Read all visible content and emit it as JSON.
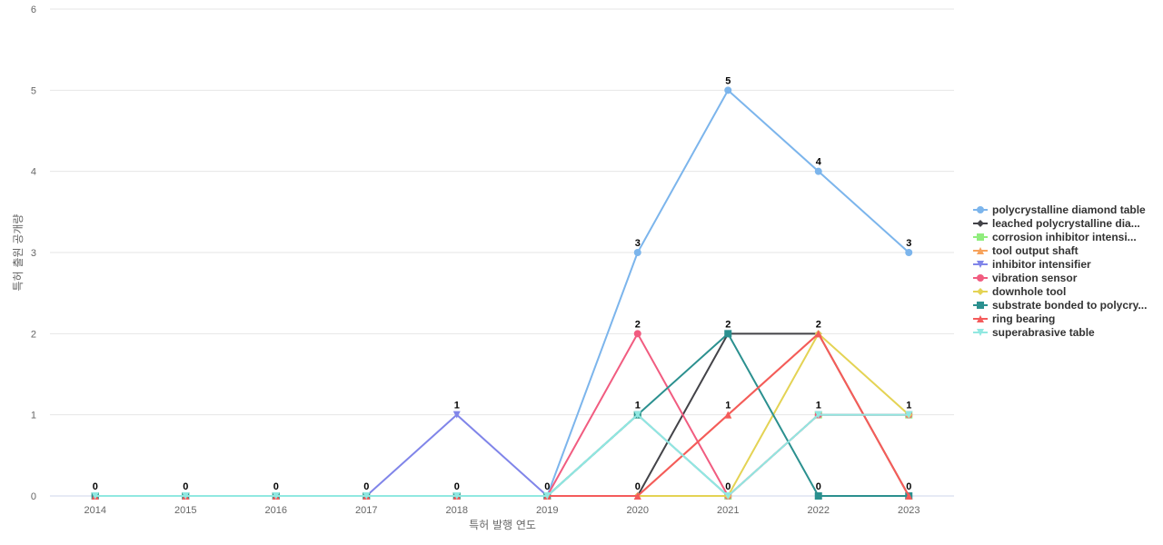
{
  "chart_data": {
    "type": "line",
    "title": "",
    "xlabel": "특허 발행 연도",
    "ylabel": "특허 출원 공개량",
    "ylim": [
      0,
      6
    ],
    "yticks": [
      0,
      1,
      2,
      3,
      4,
      5,
      6
    ],
    "grid": true,
    "legend_position": "right",
    "categories": [
      "2014",
      "2015",
      "2016",
      "2017",
      "2018",
      "2019",
      "2020",
      "2021",
      "2022",
      "2023"
    ],
    "series": [
      {
        "name": "polycrystalline diamond table",
        "color": "#7cb5ec",
        "marker": "circle",
        "values": [
          0,
          0,
          0,
          0,
          0,
          0,
          3,
          5,
          4,
          3
        ]
      },
      {
        "name": "leached polycrystalline dia...",
        "color": "#434348",
        "marker": "diamond",
        "values": [
          0,
          0,
          0,
          0,
          0,
          0,
          0,
          2,
          2,
          0
        ]
      },
      {
        "name": "corrosion inhibitor intensi...",
        "color": "#90ed7d",
        "marker": "square",
        "values": [
          0,
          0,
          0,
          0,
          0,
          0,
          1,
          0,
          1,
          1
        ]
      },
      {
        "name": "tool output shaft",
        "color": "#f7a35c",
        "marker": "triangle",
        "values": [
          0,
          0,
          0,
          0,
          0,
          0,
          0,
          1,
          2,
          0
        ]
      },
      {
        "name": "inhibitor intensifier",
        "color": "#8085e9",
        "marker": "triangle-down",
        "values": [
          0,
          0,
          0,
          0,
          1,
          0,
          1,
          0,
          1,
          1
        ]
      },
      {
        "name": "vibration sensor",
        "color": "#f15c80",
        "marker": "circle",
        "values": [
          0,
          0,
          0,
          0,
          0,
          0,
          2,
          0,
          1,
          1
        ]
      },
      {
        "name": "downhole tool",
        "color": "#e4d354",
        "marker": "diamond",
        "values": [
          0,
          0,
          0,
          0,
          0,
          0,
          0,
          0,
          2,
          1
        ]
      },
      {
        "name": "substrate bonded to polycry...",
        "color": "#2b908f",
        "marker": "square",
        "values": [
          0,
          0,
          0,
          0,
          0,
          0,
          1,
          2,
          0,
          0
        ]
      },
      {
        "name": "ring bearing",
        "color": "#f45b5b",
        "marker": "triangle",
        "values": [
          0,
          0,
          0,
          0,
          0,
          0,
          0,
          1,
          2,
          0
        ]
      },
      {
        "name": "superabrasive table",
        "color": "#91e8e1",
        "marker": "triangle-down",
        "values": [
          0,
          0,
          0,
          0,
          0,
          0,
          1,
          0,
          1,
          1
        ]
      }
    ],
    "data_labels": [
      {
        "x": "2014",
        "value": 0
      },
      {
        "x": "2015",
        "value": 0
      },
      {
        "x": "2016",
        "value": 0
      },
      {
        "x": "2017",
        "value": 0
      },
      {
        "x": "2018",
        "value": 1
      },
      {
        "x": "2018",
        "value": 0
      },
      {
        "x": "2019",
        "value": 0
      },
      {
        "x": "2020",
        "value": 3
      },
      {
        "x": "2020",
        "value": 2
      },
      {
        "x": "2020",
        "value": 1
      },
      {
        "x": "2020",
        "value": 0
      },
      {
        "x": "2021",
        "value": 5
      },
      {
        "x": "2021",
        "value": 2
      },
      {
        "x": "2021",
        "value": 1
      },
      {
        "x": "2021",
        "value": 0
      },
      {
        "x": "2022",
        "value": 4
      },
      {
        "x": "2022",
        "value": 2
      },
      {
        "x": "2022",
        "value": 1
      },
      {
        "x": "2022",
        "value": 0
      },
      {
        "x": "2023",
        "value": 3
      },
      {
        "x": "2023",
        "value": 1
      },
      {
        "x": "2023",
        "value": 0
      }
    ]
  }
}
